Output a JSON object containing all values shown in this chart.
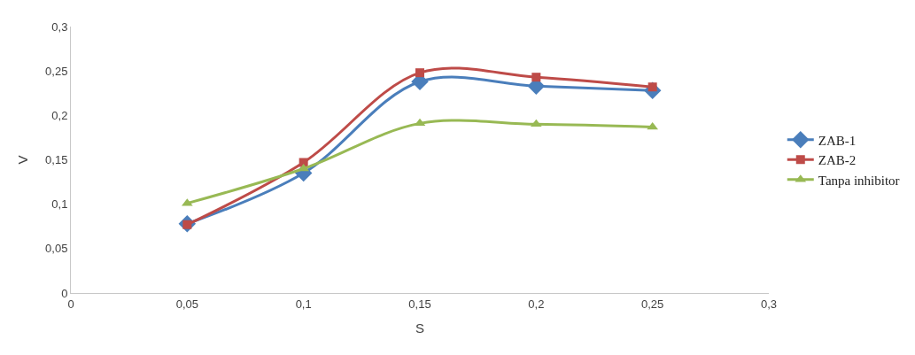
{
  "chart_data": {
    "type": "line",
    "xlabel": "S",
    "ylabel": "V",
    "x": [
      0.05,
      0.1,
      0.15,
      0.2,
      0.25
    ],
    "series": [
      {
        "name": "ZAB-1",
        "color": "#4a7ebb",
        "marker": "diamond",
        "values": [
          0.078,
          0.135,
          0.238,
          0.233,
          0.228
        ]
      },
      {
        "name": "ZAB-2",
        "color": "#be4b48",
        "marker": "square",
        "values": [
          0.077,
          0.147,
          0.248,
          0.243,
          0.232
        ]
      },
      {
        "name": "Tanpa inhibitor",
        "color": "#98b954",
        "marker": "triangle",
        "values": [
          0.101,
          0.14,
          0.191,
          0.19,
          0.187
        ]
      }
    ],
    "xlim": [
      0,
      0.3
    ],
    "ylim": [
      0,
      0.3
    ],
    "xticks": [
      0,
      {
        "value": 0.05,
        "label": "0,05"
      },
      {
        "value": 0.1,
        "label": "0,1"
      },
      {
        "value": 0.15,
        "label": "0,15"
      },
      {
        "value": 0.2,
        "label": "0,2"
      },
      {
        "value": 0.25,
        "label": "0,25"
      },
      {
        "value": 0.3,
        "label": "0,3"
      }
    ],
    "yticks": [
      0,
      {
        "value": 0.05,
        "label": "0,05"
      },
      {
        "value": 0.1,
        "label": "0,1"
      },
      {
        "value": 0.15,
        "label": "0,15"
      },
      {
        "value": 0.2,
        "label": "0,2"
      },
      {
        "value": 0.25,
        "label": "0,25"
      },
      {
        "value": 0.3,
        "label": "0,3"
      }
    ],
    "grid": false,
    "legend": "right",
    "line_style": "solid"
  }
}
